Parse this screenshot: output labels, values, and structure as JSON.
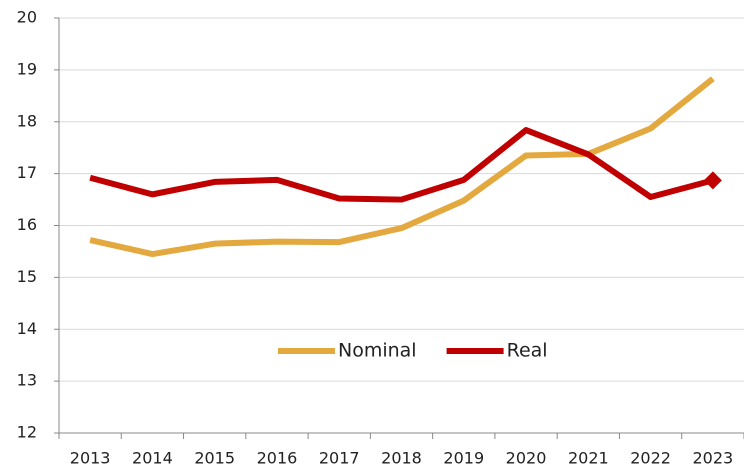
{
  "chart_data": {
    "type": "line",
    "categories": [
      "2013",
      "2014",
      "2015",
      "2016",
      "2017",
      "2018",
      "2019",
      "2020",
      "2021",
      "2022",
      "2023"
    ],
    "series": [
      {
        "name": "Nominal",
        "color": "#e3a83e",
        "values": [
          15.72,
          15.45,
          15.65,
          15.69,
          15.68,
          15.95,
          16.48,
          17.35,
          17.38,
          17.87,
          18.83
        ]
      },
      {
        "name": "Real",
        "color": "#c00000",
        "marker": "diamond",
        "values": [
          16.92,
          16.6,
          16.84,
          16.88,
          16.52,
          16.5,
          16.88,
          17.84,
          17.37,
          16.55,
          16.87
        ]
      }
    ],
    "ylim": [
      12,
      20
    ],
    "yticks": [
      12,
      13,
      14,
      15,
      16,
      17,
      18,
      19,
      20
    ],
    "grid": true,
    "legend": "center"
  }
}
